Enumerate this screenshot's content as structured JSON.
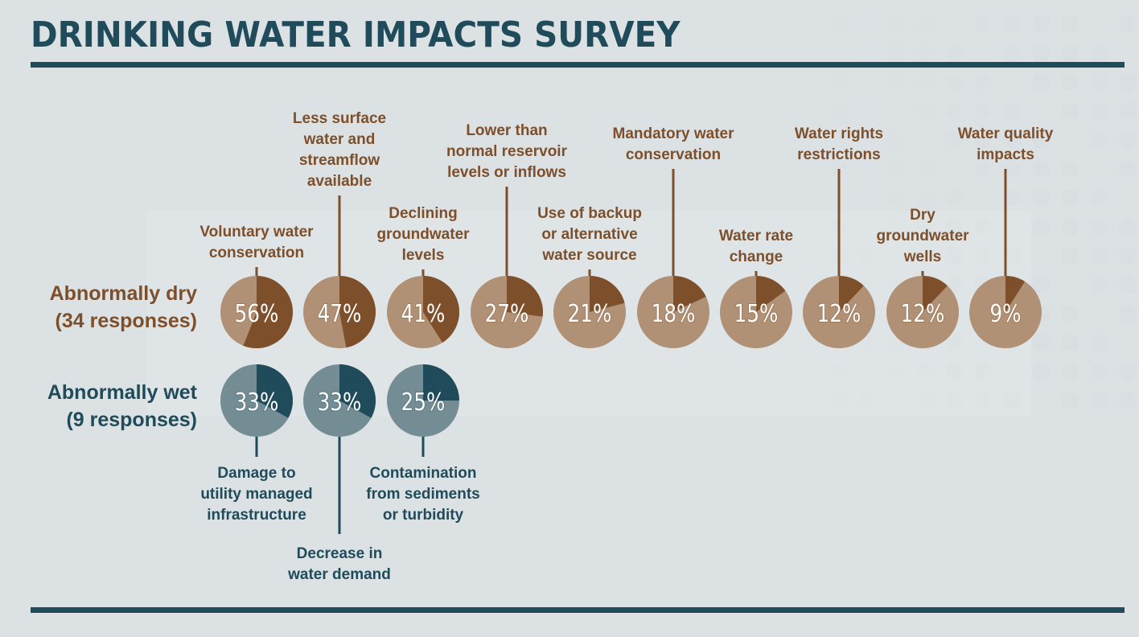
{
  "title": "DRINKING WATER IMPACTS SURVEY",
  "colors": {
    "dry_dark": "#7d4f2a",
    "dry_light": "#b09176",
    "wet_dark": "#204b5a",
    "wet_light": "#748d95",
    "rule": "#204b5a",
    "background": "#dce1e4"
  },
  "chart_data": {
    "type": "pie",
    "title": "DRINKING WATER IMPACTS SURVEY",
    "groups": [
      {
        "name": "Abnormally dry",
        "responses_label": "(34 responses)",
        "label_position": "above",
        "items": [
          {
            "label": [
              "Voluntary water",
              "conservation"
            ],
            "value": 56,
            "display": "56%"
          },
          {
            "label": [
              "Less surface",
              "water and",
              "streamflow",
              "available"
            ],
            "value": 47,
            "display": "47%"
          },
          {
            "label": [
              "Declining",
              "groundwater",
              "levels"
            ],
            "value": 41,
            "display": "41%"
          },
          {
            "label": [
              "Lower than",
              "normal reservoir",
              "levels or inflows"
            ],
            "value": 27,
            "display": "27%"
          },
          {
            "label": [
              "Use of backup",
              "or alternative",
              "water source"
            ],
            "value": 21,
            "display": "21%"
          },
          {
            "label": [
              "Mandatory water",
              "conservation"
            ],
            "value": 18,
            "display": "18%"
          },
          {
            "label": [
              "Water rate",
              "change"
            ],
            "value": 15,
            "display": "15%"
          },
          {
            "label": [
              "Water rights",
              "restrictions"
            ],
            "value": 12,
            "display": "12%"
          },
          {
            "label": [
              "Dry",
              "groundwater",
              "wells"
            ],
            "value": 12,
            "display": "12%"
          },
          {
            "label": [
              "Water quality",
              "impacts"
            ],
            "value": 9,
            "display": "9%"
          }
        ]
      },
      {
        "name": "Abnormally wet",
        "responses_label": "(9 responses)",
        "label_position": "below",
        "items": [
          {
            "label": [
              "Damage to",
              "utility managed",
              "infrastructure"
            ],
            "value": 33,
            "display": "33%"
          },
          {
            "label": [
              "Decrease in",
              "water demand"
            ],
            "value": 33,
            "display": "33%"
          },
          {
            "label": [
              "Contamination",
              "from sediments",
              "or turbidity"
            ],
            "value": 25,
            "display": "25%"
          }
        ]
      }
    ]
  }
}
